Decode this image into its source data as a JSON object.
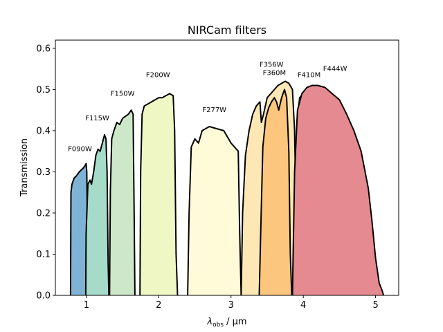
{
  "chart_data": {
    "type": "area",
    "title": "NIRCam filters",
    "xlabel_main": "λ",
    "xlabel_sub": "obs",
    "xlabel_unit": " / μm",
    "ylabel": "Transmission",
    "xlim": [
      0.57,
      5.32
    ],
    "ylim": [
      0.0,
      0.62
    ],
    "xticks": [
      {
        "value": 1,
        "label": "1"
      },
      {
        "value": 2,
        "label": "2"
      },
      {
        "value": 3,
        "label": "3"
      },
      {
        "value": 4,
        "label": "4"
      },
      {
        "value": 5,
        "label": "5"
      }
    ],
    "yticks": [
      {
        "value": 0.0,
        "label": "0.0"
      },
      {
        "value": 0.1,
        "label": "0.1"
      },
      {
        "value": 0.2,
        "label": "0.2"
      },
      {
        "value": 0.3,
        "label": "0.3"
      },
      {
        "value": 0.4,
        "label": "0.4"
      },
      {
        "value": 0.5,
        "label": "0.5"
      },
      {
        "value": 0.6,
        "label": "0.6"
      }
    ],
    "series": [
      {
        "name": "F090W",
        "color": "#7fb3d5",
        "label_x": 0.91,
        "label_y": 0.35,
        "x": [
          0.78,
          0.785,
          0.8,
          0.83,
          0.86,
          0.9,
          0.93,
          0.96,
          0.98,
          0.995,
          1.005,
          1.015,
          1.02
        ],
        "y": [
          0.0,
          0.25,
          0.27,
          0.285,
          0.29,
          0.3,
          0.305,
          0.31,
          0.315,
          0.32,
          0.3,
          0.12,
          0.0
        ]
      },
      {
        "name": "F115W",
        "color": "#a6dbc9",
        "label_x": 1.15,
        "label_y": 0.425,
        "x": [
          0.99,
          0.995,
          1.02,
          1.05,
          1.07,
          1.1,
          1.13,
          1.16,
          1.19,
          1.22,
          1.25,
          1.27,
          1.285,
          1.3,
          1.31
        ],
        "y": [
          0.0,
          0.15,
          0.27,
          0.28,
          0.27,
          0.3,
          0.34,
          0.355,
          0.35,
          0.37,
          0.39,
          0.38,
          0.3,
          0.08,
          0.0
        ]
      },
      {
        "name": "F150W",
        "color": "#cce8c8",
        "label_x": 1.5,
        "label_y": 0.485,
        "x": [
          1.32,
          1.33,
          1.35,
          1.38,
          1.42,
          1.46,
          1.5,
          1.54,
          1.58,
          1.62,
          1.645,
          1.66,
          1.67
        ],
        "y": [
          0.0,
          0.25,
          0.38,
          0.4,
          0.42,
          0.415,
          0.43,
          0.435,
          0.44,
          0.45,
          0.44,
          0.2,
          0.0
        ]
      },
      {
        "name": "F200W",
        "color": "#eff7c5",
        "label_x": 1.99,
        "label_y": 0.53,
        "x": [
          1.74,
          1.75,
          1.77,
          1.8,
          1.85,
          1.9,
          1.95,
          2.0,
          2.05,
          2.1,
          2.15,
          2.2,
          2.22,
          2.24,
          2.26
        ],
        "y": [
          0.0,
          0.3,
          0.44,
          0.46,
          0.465,
          0.47,
          0.475,
          0.48,
          0.48,
          0.485,
          0.49,
          0.485,
          0.4,
          0.1,
          0.0
        ]
      },
      {
        "name": "F277W",
        "color": "#fffbd8",
        "label_x": 2.77,
        "label_y": 0.445,
        "x": [
          2.4,
          2.42,
          2.45,
          2.5,
          2.55,
          2.6,
          2.7,
          2.8,
          2.9,
          2.95,
          3.0,
          3.05,
          3.1,
          3.12,
          3.14
        ],
        "y": [
          0.0,
          0.2,
          0.36,
          0.38,
          0.37,
          0.4,
          0.41,
          0.405,
          0.4,
          0.385,
          0.37,
          0.36,
          0.35,
          0.15,
          0.0
        ]
      },
      {
        "name": "F356W",
        "color": "#fde8b5",
        "label_x": 3.56,
        "label_y": 0.555,
        "x": [
          3.14,
          3.16,
          3.2,
          3.25,
          3.3,
          3.35,
          3.4,
          3.42,
          3.45,
          3.5,
          3.55,
          3.6,
          3.65,
          3.7,
          3.75,
          3.8,
          3.85,
          3.88,
          3.91,
          3.93
        ],
        "y": [
          0.0,
          0.2,
          0.34,
          0.4,
          0.44,
          0.46,
          0.47,
          0.42,
          0.44,
          0.48,
          0.49,
          0.5,
          0.51,
          0.515,
          0.52,
          0.515,
          0.5,
          0.4,
          0.1,
          0.0
        ]
      },
      {
        "name": "F360M",
        "color": "#fcc67e",
        "label_x": 3.6,
        "label_y": 0.535,
        "x": [
          3.39,
          3.41,
          3.44,
          3.48,
          3.52,
          3.56,
          3.6,
          3.63,
          3.66,
          3.7,
          3.74,
          3.77,
          3.8,
          3.82,
          3.84
        ],
        "y": [
          0.0,
          0.15,
          0.36,
          0.43,
          0.455,
          0.47,
          0.48,
          0.47,
          0.45,
          0.48,
          0.5,
          0.48,
          0.35,
          0.1,
          0.0
        ]
      },
      {
        "name": "F410M",
        "color": "#e06a6e",
        "label_x": 4.08,
        "label_y": 0.53,
        "x": [
          3.87,
          3.89,
          3.91,
          3.95,
          4.0,
          4.05,
          4.1,
          4.15,
          4.2,
          4.23,
          4.26,
          4.28,
          4.3
        ],
        "y": [
          0.0,
          0.2,
          0.42,
          0.48,
          0.49,
          0.495,
          0.498,
          0.49,
          0.48,
          0.47,
          0.35,
          0.1,
          0.0
        ]
      },
      {
        "name": "F444W",
        "color": "#e58a90",
        "label_x": 4.44,
        "label_y": 0.545,
        "x": [
          3.85,
          3.88,
          3.92,
          3.98,
          4.05,
          4.12,
          4.2,
          4.3,
          4.4,
          4.5,
          4.6,
          4.7,
          4.8,
          4.9,
          4.95,
          5.0,
          5.05,
          5.09,
          5.11
        ],
        "y": [
          0.0,
          0.3,
          0.45,
          0.49,
          0.505,
          0.51,
          0.51,
          0.505,
          0.49,
          0.475,
          0.44,
          0.4,
          0.35,
          0.26,
          0.18,
          0.09,
          0.03,
          0.012,
          0.0
        ]
      }
    ]
  }
}
